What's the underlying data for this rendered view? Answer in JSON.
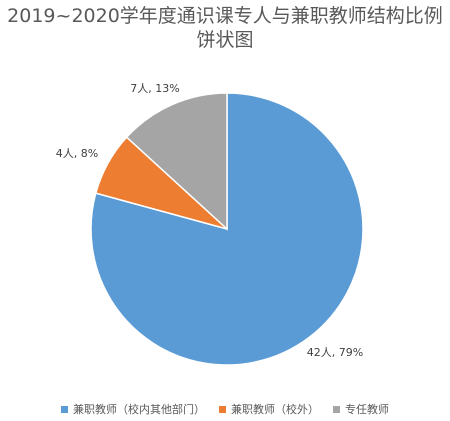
{
  "chart_data": {
    "type": "pie",
    "title": "2019~2020学年度通识课专人与兼职教师结构比例\n饼状图",
    "series": [
      {
        "name": "兼职教师（校内其他部门）",
        "value": 42,
        "data_label": "42人, 79%",
        "color": "#5b9bd5"
      },
      {
        "name": "兼职教师（校外）",
        "value": 4,
        "data_label": "4人, 8%",
        "color": "#ed7d31"
      },
      {
        "name": "专任教师",
        "value": 7,
        "data_label": "7人, 13%",
        "color": "#a5a5a5"
      }
    ],
    "legend_position": "bottom"
  }
}
